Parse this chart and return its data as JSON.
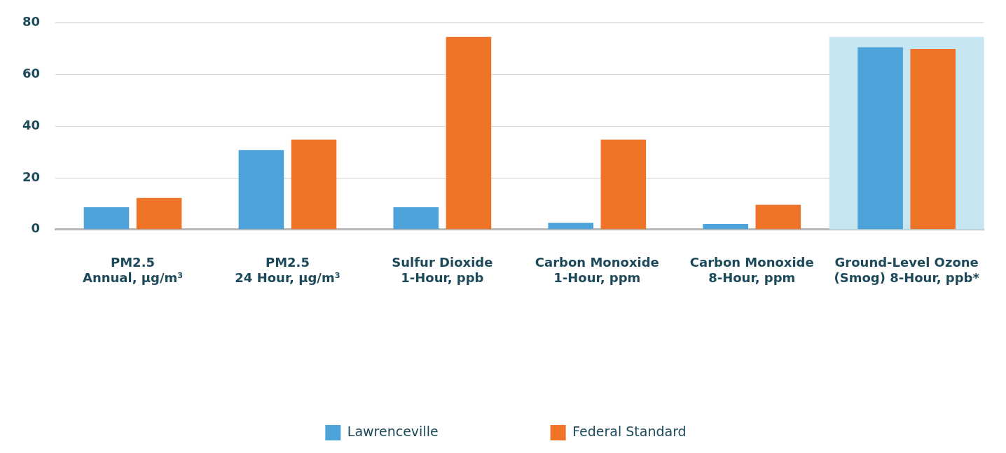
{
  "chart_data": {
    "type": "bar",
    "categories": [
      "PM2.5\nAnnual, µg/m³",
      "PM2.5\n24 Hour, µg/m³",
      "Sulfur Dioxide\n1-Hour, ppb",
      "Carbon Monoxide\n1-Hour, ppm",
      "Carbon Monoxide\n8-Hour, ppm",
      "Ground-Level Ozone\n(Smog) 8-Hour, ppb*"
    ],
    "series": [
      {
        "name": "Lawrenceville",
        "color": "#4ea2da",
        "values": [
          8.6,
          30.8,
          8.6,
          2.6,
          2.1,
          70.6
        ]
      },
      {
        "name": "Federal Standard",
        "color": "#f07427",
        "values": [
          12.2,
          34.8,
          74.6,
          34.8,
          9.6,
          69.9
        ]
      }
    ],
    "ylim": [
      0,
      80
    ],
    "yticks": [
      0,
      20,
      40,
      60,
      80
    ],
    "grid": "y",
    "legend": "bottom",
    "bands": [
      {
        "axis": "x",
        "from": "Ground-Level Ozone\n(Smog) 8-Hour, ppb*",
        "to": "Ground-Level Ozone\n(Smog) 8-Hour, ppb*",
        "color": "#c6e7f1"
      }
    ]
  }
}
